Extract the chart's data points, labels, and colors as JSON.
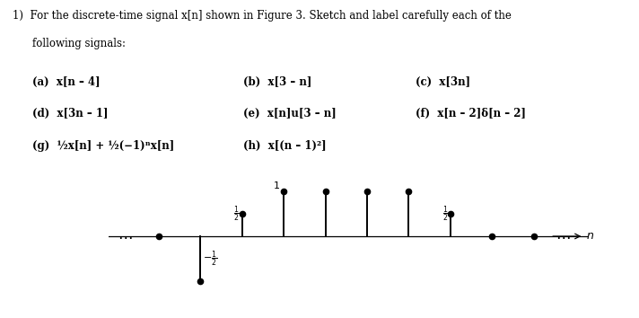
{
  "title_line1": "1)  For the discrete-time signal x[n] shown in Figure 3. Sketch and label carefully each of the",
  "title_line2": "following signals:",
  "row1": [
    "(a)  x[n – 4]",
    "(b)  x[3 – n]",
    "(c)  x[3n]"
  ],
  "row2": [
    "(d)  x[3n – 1]",
    "(e)  x[n]u[3 – n]",
    "(f)  x[n – 2]δ[n – 2]"
  ],
  "row3": [
    "(g)  ½x[n] + ½(−1)ⁿx[n]",
    "(h)  x[(n – 1)²]",
    ""
  ],
  "n_values": [
    -4,
    -3,
    -2,
    -1,
    0,
    1,
    2,
    3,
    4,
    5
  ],
  "x_values": [
    0,
    -1,
    0.5,
    1,
    1,
    1,
    1,
    0.5,
    0,
    0
  ],
  "dot_only": [
    -4,
    4,
    5
  ],
  "x_axis_start": -5.2,
  "x_axis_end": 6.3,
  "y_axis_bottom": -1.6,
  "y_axis_top": 1.5,
  "bg_color": "#ffffff",
  "text_color": "#000000",
  "stem_color": "#000000",
  "marker_color": "#000000"
}
